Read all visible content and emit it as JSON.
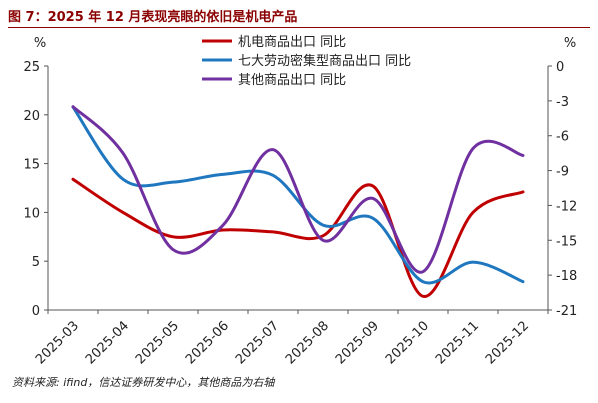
{
  "title": "图 7：2025 年 12 月表现亮眼的依旧是机电产品",
  "source": "资料来源: ifind，信达证券研发中心，其他商品为右轴",
  "chart_data": {
    "type": "line",
    "categories": [
      "2025-03",
      "2025-04",
      "2025-05",
      "2025-06",
      "2025-07",
      "2025-08",
      "2025-09",
      "2025-10",
      "2025-11",
      "2025-12"
    ],
    "left_axis": {
      "unit": "%",
      "ylim": [
        0,
        25
      ],
      "ticks": [
        0,
        5,
        10,
        15,
        20,
        25
      ]
    },
    "right_axis": {
      "unit": "%",
      "ylim": [
        -21,
        0
      ],
      "ticks": [
        -21,
        -18,
        -15,
        -12,
        -9,
        -6,
        -3,
        0
      ]
    },
    "grid": false,
    "legend_position": "top-right",
    "series": [
      {
        "name": "机电商品出口 同比",
        "axis": "left",
        "color": "#c00000",
        "values": [
          13.4,
          10.0,
          7.5,
          8.2,
          8.0,
          7.6,
          12.7,
          1.4,
          10.0,
          12.1
        ]
      },
      {
        "name": "七大劳动密集型商品出口 同比",
        "axis": "left",
        "color": "#1f77c0",
        "values": [
          20.8,
          13.4,
          13.1,
          13.9,
          13.8,
          8.7,
          9.4,
          2.9,
          4.9,
          2.9
        ]
      },
      {
        "name": "其他商品出口 同比",
        "axis": "right",
        "color": "#7030a0",
        "values": [
          -3.5,
          -7.5,
          -15.8,
          -13.7,
          -7.2,
          -15.0,
          -11.4,
          -17.7,
          -7.1,
          -7.7
        ]
      }
    ]
  }
}
